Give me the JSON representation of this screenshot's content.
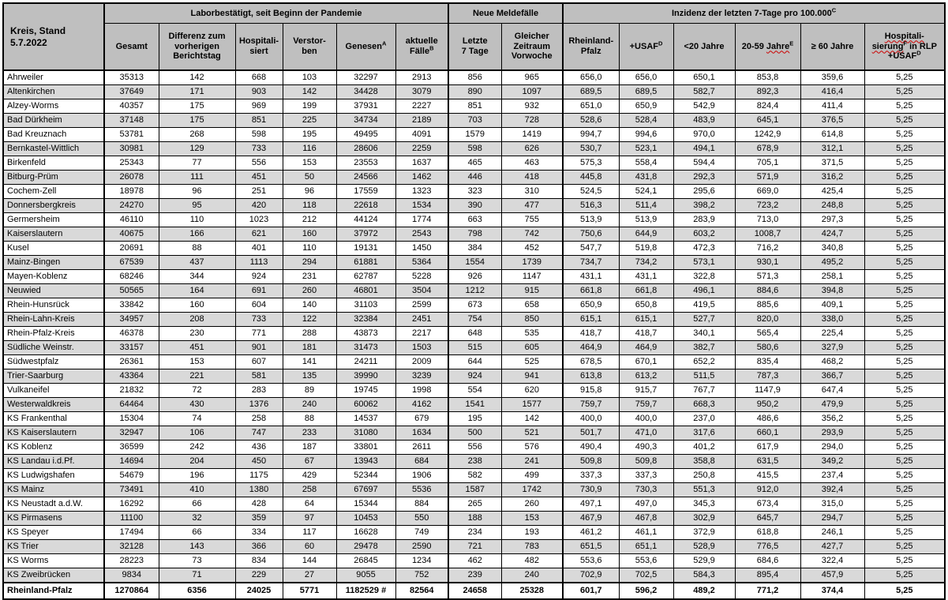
{
  "header": {
    "kreis": "Kreis, Stand 5.7.2022",
    "groups": {
      "labor": "Laborbestätigt, seit Beginn der Pandemie",
      "neue": "Neue Meldefälle",
      "inzidenz_text": "Inzidenz der letzten 7-Tage pro 100.000",
      "inzidenz_sup": "C"
    },
    "cols": {
      "gesamt": "Gesamt",
      "differenz": "Differenz zum\nvorherigen\nBerichtstag",
      "hospitalisiert": "Hospitali-\nsiert",
      "verstorben": "Verstor-\nben",
      "genesen_text": "Genesen",
      "genesen_sup": "A",
      "aktuelle_text": "aktuelle\nFälle",
      "aktuelle_sup": "B",
      "letzte7": "Letzte\n7 Tage",
      "vorwoche": "Gleicher\nZeitraum\nVorwoche",
      "rlp": "Rheinland-\nPfalz",
      "usaf_text": "+USAF",
      "usaf_sup": "D",
      "unter20": "<20 Jahre",
      "j2059_prefix": "20-59 ",
      "j2059_wavy": "Jahre",
      "j2059_sup": "E",
      "ab60": "≥ 60 Jahre",
      "hosp_line1": "Hospitali-",
      "hosp_line2": "sierung",
      "hosp_line2_sup": "F",
      "hosp_line2_rest": " in RLP",
      "hosp_line3": "+USAF",
      "hosp_line3_sup": "D"
    }
  },
  "colors": {
    "header_bg": "#bfbfbf",
    "stripe_bg": "#d9d9d9",
    "border": "#000000",
    "squiggle": "#cc0000"
  },
  "rows": [
    [
      "Ahrweiler",
      "35313",
      "142",
      "668",
      "103",
      "32297",
      "2913",
      "856",
      "965",
      "656,0",
      "656,0",
      "650,1",
      "853,8",
      "359,6",
      "5,25"
    ],
    [
      "Altenkirchen",
      "37649",
      "171",
      "903",
      "142",
      "34428",
      "3079",
      "890",
      "1097",
      "689,5",
      "689,5",
      "582,7",
      "892,3",
      "416,4",
      "5,25"
    ],
    [
      "Alzey-Worms",
      "40357",
      "175",
      "969",
      "199",
      "37931",
      "2227",
      "851",
      "932",
      "651,0",
      "650,9",
      "542,9",
      "824,4",
      "411,4",
      "5,25"
    ],
    [
      "Bad Dürkheim",
      "37148",
      "175",
      "851",
      "225",
      "34734",
      "2189",
      "703",
      "728",
      "528,6",
      "528,4",
      "483,9",
      "645,1",
      "376,5",
      "5,25"
    ],
    [
      "Bad Kreuznach",
      "53781",
      "268",
      "598",
      "195",
      "49495",
      "4091",
      "1579",
      "1419",
      "994,7",
      "994,6",
      "970,0",
      "1242,9",
      "614,8",
      "5,25"
    ],
    [
      "Bernkastel-Wittlich",
      "30981",
      "129",
      "733",
      "116",
      "28606",
      "2259",
      "598",
      "626",
      "530,7",
      "523,1",
      "494,1",
      "678,9",
      "312,1",
      "5,25"
    ],
    [
      "Birkenfeld",
      "25343",
      "77",
      "556",
      "153",
      "23553",
      "1637",
      "465",
      "463",
      "575,3",
      "558,4",
      "594,4",
      "705,1",
      "371,5",
      "5,25"
    ],
    [
      "Bitburg-Prüm",
      "26078",
      "111",
      "451",
      "50",
      "24566",
      "1462",
      "446",
      "418",
      "445,8",
      "431,8",
      "292,3",
      "571,9",
      "316,2",
      "5,25"
    ],
    [
      "Cochem-Zell",
      "18978",
      "96",
      "251",
      "96",
      "17559",
      "1323",
      "323",
      "310",
      "524,5",
      "524,1",
      "295,6",
      "669,0",
      "425,4",
      "5,25"
    ],
    [
      "Donnersbergkreis",
      "24270",
      "95",
      "420",
      "118",
      "22618",
      "1534",
      "390",
      "477",
      "516,3",
      "511,4",
      "398,2",
      "723,2",
      "248,8",
      "5,25"
    ],
    [
      "Germersheim",
      "46110",
      "110",
      "1023",
      "212",
      "44124",
      "1774",
      "663",
      "755",
      "513,9",
      "513,9",
      "283,9",
      "713,0",
      "297,3",
      "5,25"
    ],
    [
      "Kaiserslautern",
      "40675",
      "166",
      "621",
      "160",
      "37972",
      "2543",
      "798",
      "742",
      "750,6",
      "644,9",
      "603,2",
      "1008,7",
      "424,7",
      "5,25"
    ],
    [
      "Kusel",
      "20691",
      "88",
      "401",
      "110",
      "19131",
      "1450",
      "384",
      "452",
      "547,7",
      "519,8",
      "472,3",
      "716,2",
      "340,8",
      "5,25"
    ],
    [
      "Mainz-Bingen",
      "67539",
      "437",
      "1113",
      "294",
      "61881",
      "5364",
      "1554",
      "1739",
      "734,7",
      "734,2",
      "573,1",
      "930,1",
      "495,2",
      "5,25"
    ],
    [
      "Mayen-Koblenz",
      "68246",
      "344",
      "924",
      "231",
      "62787",
      "5228",
      "926",
      "1147",
      "431,1",
      "431,1",
      "322,8",
      "571,3",
      "258,1",
      "5,25"
    ],
    [
      "Neuwied",
      "50565",
      "164",
      "691",
      "260",
      "46801",
      "3504",
      "1212",
      "915",
      "661,8",
      "661,8",
      "496,1",
      "884,6",
      "394,8",
      "5,25"
    ],
    [
      "Rhein-Hunsrück",
      "33842",
      "160",
      "604",
      "140",
      "31103",
      "2599",
      "673",
      "658",
      "650,9",
      "650,8",
      "419,5",
      "885,6",
      "409,1",
      "5,25"
    ],
    [
      "Rhein-Lahn-Kreis",
      "34957",
      "208",
      "733",
      "122",
      "32384",
      "2451",
      "754",
      "850",
      "615,1",
      "615,1",
      "527,7",
      "820,0",
      "338,0",
      "5,25"
    ],
    [
      "Rhein-Pfalz-Kreis",
      "46378",
      "230",
      "771",
      "288",
      "43873",
      "2217",
      "648",
      "535",
      "418,7",
      "418,7",
      "340,1",
      "565,4",
      "225,4",
      "5,25"
    ],
    [
      "Südliche Weinstr.",
      "33157",
      "451",
      "901",
      "181",
      "31473",
      "1503",
      "515",
      "605",
      "464,9",
      "464,9",
      "382,7",
      "580,6",
      "327,9",
      "5,25"
    ],
    [
      "Südwestpfalz",
      "26361",
      "153",
      "607",
      "141",
      "24211",
      "2009",
      "644",
      "525",
      "678,5",
      "670,1",
      "652,2",
      "835,4",
      "468,2",
      "5,25"
    ],
    [
      "Trier-Saarburg",
      "43364",
      "221",
      "581",
      "135",
      "39990",
      "3239",
      "924",
      "941",
      "613,8",
      "613,2",
      "511,5",
      "787,3",
      "366,7",
      "5,25"
    ],
    [
      "Vulkaneifel",
      "21832",
      "72",
      "283",
      "89",
      "19745",
      "1998",
      "554",
      "620",
      "915,8",
      "915,7",
      "767,7",
      "1147,9",
      "647,4",
      "5,25"
    ],
    [
      "Westerwaldkreis",
      "64464",
      "430",
      "1376",
      "240",
      "60062",
      "4162",
      "1541",
      "1577",
      "759,7",
      "759,7",
      "668,3",
      "950,2",
      "479,9",
      "5,25"
    ],
    [
      "KS Frankenthal",
      "15304",
      "74",
      "258",
      "88",
      "14537",
      "679",
      "195",
      "142",
      "400,0",
      "400,0",
      "237,0",
      "486,6",
      "356,2",
      "5,25"
    ],
    [
      "KS Kaiserslautern",
      "32947",
      "106",
      "747",
      "233",
      "31080",
      "1634",
      "500",
      "521",
      "501,7",
      "471,0",
      "317,6",
      "660,1",
      "293,9",
      "5,25"
    ],
    [
      "KS Koblenz",
      "36599",
      "242",
      "436",
      "187",
      "33801",
      "2611",
      "556",
      "576",
      "490,4",
      "490,3",
      "401,2",
      "617,9",
      "294,0",
      "5,25"
    ],
    [
      "KS Landau i.d.Pf.",
      "14694",
      "204",
      "450",
      "67",
      "13943",
      "684",
      "238",
      "241",
      "509,8",
      "509,8",
      "358,8",
      "631,5",
      "349,2",
      "5,25"
    ],
    [
      "KS Ludwigshafen",
      "54679",
      "196",
      "1175",
      "429",
      "52344",
      "1906",
      "582",
      "499",
      "337,3",
      "337,3",
      "250,8",
      "415,5",
      "237,4",
      "5,25"
    ],
    [
      "KS Mainz",
      "73491",
      "410",
      "1380",
      "258",
      "67697",
      "5536",
      "1587",
      "1742",
      "730,9",
      "730,3",
      "551,3",
      "912,0",
      "392,4",
      "5,25"
    ],
    [
      "KS Neustadt a.d.W.",
      "16292",
      "66",
      "428",
      "64",
      "15344",
      "884",
      "265",
      "260",
      "497,1",
      "497,0",
      "345,3",
      "673,4",
      "315,0",
      "5,25"
    ],
    [
      "KS Pirmasens",
      "11100",
      "32",
      "359",
      "97",
      "10453",
      "550",
      "188",
      "153",
      "467,9",
      "467,8",
      "302,9",
      "645,7",
      "294,7",
      "5,25"
    ],
    [
      "KS Speyer",
      "17494",
      "66",
      "334",
      "117",
      "16628",
      "749",
      "234",
      "193",
      "461,2",
      "461,1",
      "372,9",
      "618,8",
      "246,1",
      "5,25"
    ],
    [
      "KS Trier",
      "32128",
      "143",
      "366",
      "60",
      "29478",
      "2590",
      "721",
      "783",
      "651,5",
      "651,1",
      "528,9",
      "776,5",
      "427,7",
      "5,25"
    ],
    [
      "KS Worms",
      "28223",
      "73",
      "834",
      "144",
      "26845",
      "1234",
      "462",
      "482",
      "553,6",
      "553,6",
      "529,9",
      "684,6",
      "322,4",
      "5,25"
    ],
    [
      "KS Zweibrücken",
      "9834",
      "71",
      "229",
      "27",
      "9055",
      "752",
      "239",
      "240",
      "702,9",
      "702,5",
      "584,3",
      "895,4",
      "457,9",
      "5,25"
    ]
  ],
  "total": [
    "Rheinland-Pfalz",
    "1270864",
    "6356",
    "24025",
    "5771",
    "1182529 #",
    "82564",
    "24658",
    "25328",
    "601,7",
    "596,2",
    "489,2",
    "771,2",
    "374,4",
    "5,25"
  ]
}
